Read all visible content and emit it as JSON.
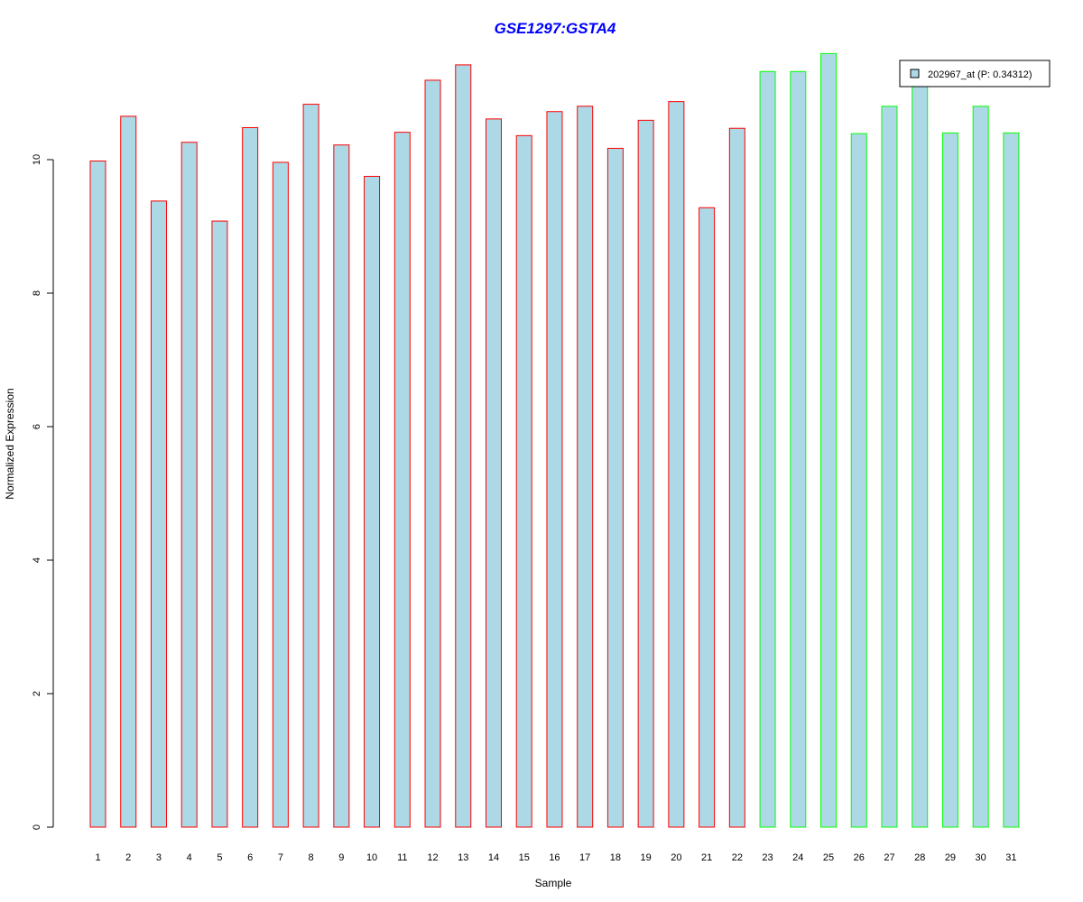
{
  "chart_data": {
    "type": "bar",
    "title": "GSE1297:GSTA4",
    "xlabel": "Sample",
    "ylabel": "Normalized Expression",
    "categories": [
      "1",
      "2",
      "3",
      "4",
      "5",
      "6",
      "7",
      "8",
      "9",
      "10",
      "11",
      "12",
      "13",
      "14",
      "15",
      "16",
      "17",
      "18",
      "19",
      "20",
      "21",
      "22",
      "23",
      "24",
      "25",
      "26",
      "27",
      "28",
      "29",
      "30",
      "31"
    ],
    "values": [
      9.98,
      10.65,
      9.38,
      10.26,
      9.08,
      10.48,
      9.96,
      10.83,
      10.22,
      9.75,
      10.41,
      11.19,
      11.42,
      10.61,
      10.36,
      10.72,
      10.8,
      10.17,
      10.59,
      10.87,
      9.28,
      10.47,
      11.32,
      11.32,
      11.59,
      10.39,
      10.8,
      11.11,
      10.4,
      10.8,
      10.4
    ],
    "group_of_bar": [
      "a",
      "a",
      "a",
      "a",
      "a",
      "a",
      "a",
      "a",
      "a",
      "a",
      "a",
      "a",
      "a",
      "a",
      "a",
      "a",
      "a",
      "a",
      "a",
      "a",
      "a",
      "a",
      "b",
      "b",
      "b",
      "b",
      "b",
      "b",
      "b",
      "b",
      "b"
    ],
    "bar_fill": "#add8e6",
    "group_border_colors": {
      "a": "#ff0000",
      "b": "#00ff00"
    },
    "title_color": "#0000ff",
    "yticks": [
      0,
      2,
      4,
      6,
      8,
      10
    ],
    "ylim": [
      0,
      11.59
    ],
    "legend": {
      "label": "202967_at (P: 0.34312)",
      "placement": "top-right"
    },
    "grid": false
  }
}
